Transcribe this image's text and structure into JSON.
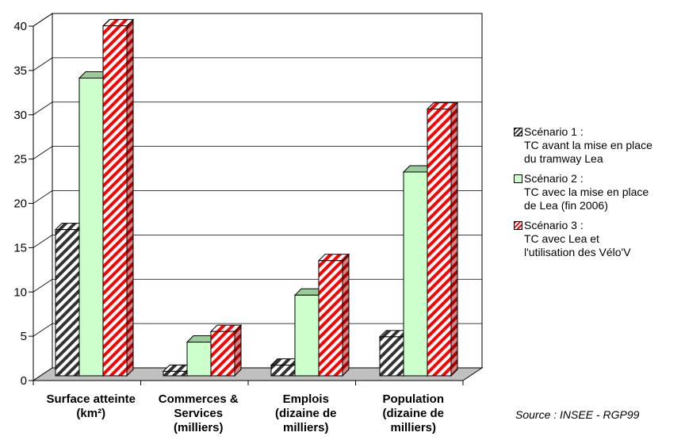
{
  "chart_data": {
    "type": "bar",
    "categories": [
      {
        "lines": [
          "Surface atteinte",
          "(km²)"
        ]
      },
      {
        "lines": [
          "Commerces &",
          "Services",
          "(milliers)"
        ]
      },
      {
        "lines": [
          "Emplois",
          "(dizaine de",
          "milliers)"
        ]
      },
      {
        "lines": [
          "Population",
          "(dizaine de",
          "milliers)"
        ]
      }
    ],
    "series": [
      {
        "name": "Scénario 1 : TC avant la mise en place du tramway Lea",
        "values": [
          16.5,
          0.5,
          1.2,
          4.4
        ],
        "color": "#333333",
        "pattern": "hatch-dark"
      },
      {
        "name": "Scénario 2 : TC avec la mise en place de Lea (fin 2006)",
        "values": [
          33.6,
          3.8,
          9.1,
          23.0
        ],
        "color": "#ccffcc",
        "pattern": "solid"
      },
      {
        "name": "Scénario 3 : TC avec Lea et l'utilisation des Vélo'V",
        "values": [
          39.5,
          5.0,
          13.0,
          30.1
        ],
        "color": "#ff0000",
        "pattern": "hatch-red"
      }
    ],
    "ylim": [
      0,
      40
    ],
    "yticks": [
      "0",
      "5",
      "10",
      "15",
      "20",
      "25",
      "30",
      "35",
      "40"
    ],
    "grid": true,
    "legend_position": "right"
  },
  "legend": [
    {
      "title": "Scénario 1 :",
      "lines": [
        "TC avant la mise en place",
        "du tramway Lea"
      ]
    },
    {
      "title": "Scénario 2 :",
      "lines": [
        "TC avec la mise en place",
        "de Lea (fin 2006)"
      ]
    },
    {
      "title": "Scénario 3 :",
      "lines": [
        "TC avec Lea et",
        "l'utilisation des Vélo'V"
      ]
    }
  ],
  "source": "Source : INSEE - RGP99"
}
